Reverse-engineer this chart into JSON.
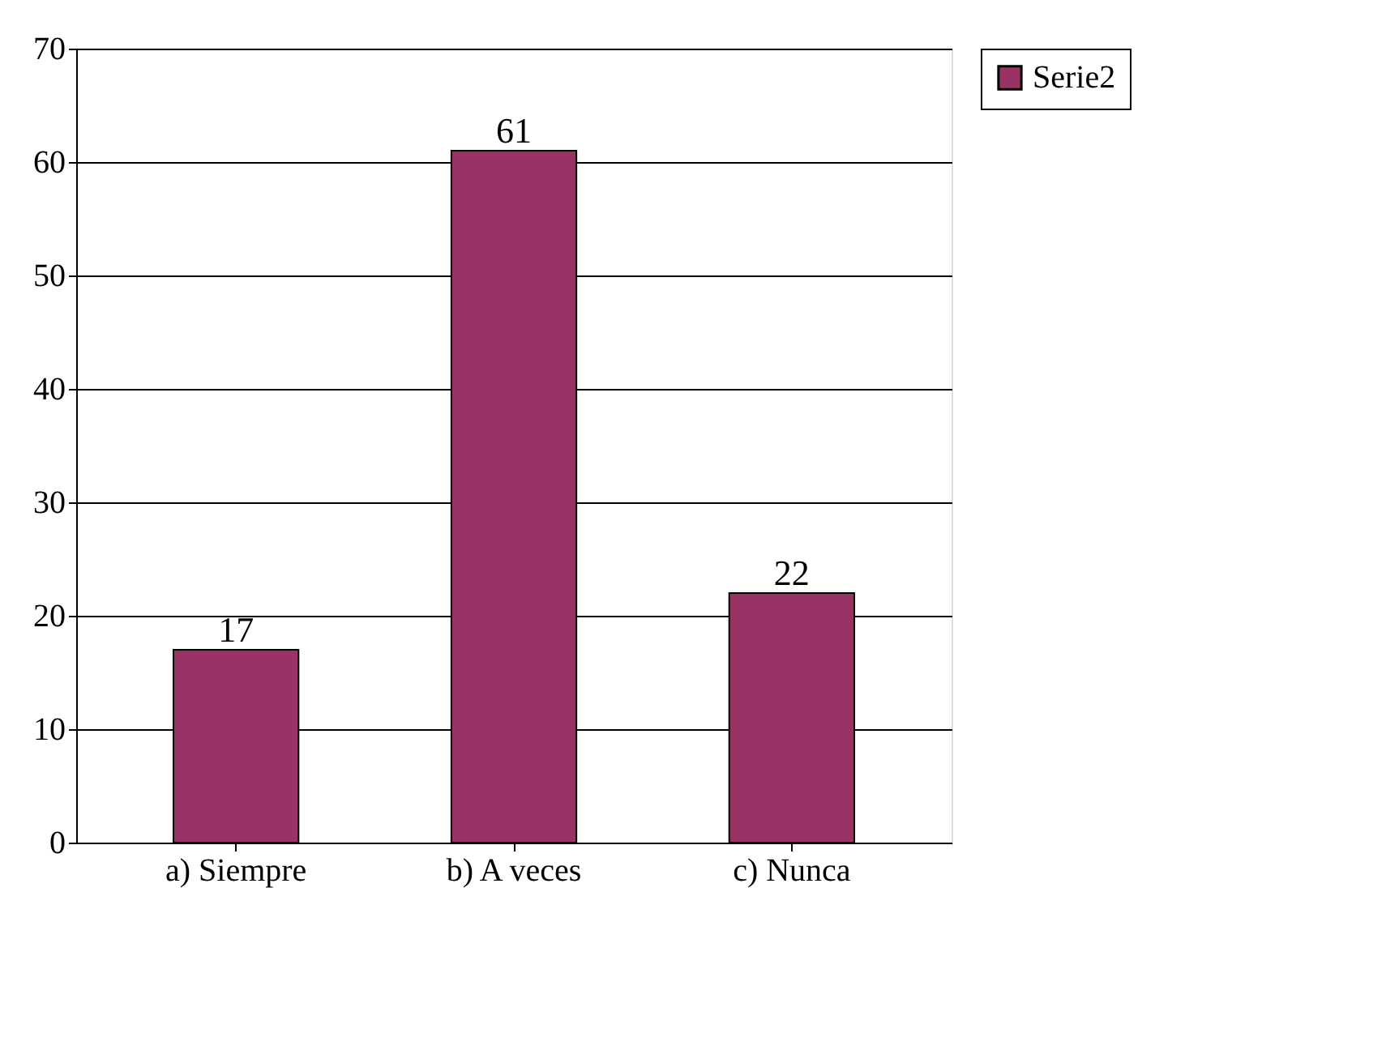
{
  "chart_data": {
    "type": "bar",
    "categories": [
      "a)  Siempre",
      "b)  A veces",
      "c)  Nunca"
    ],
    "series": [
      {
        "name": "Serie2",
        "color": "#993366",
        "values": [
          17,
          61,
          22
        ]
      }
    ],
    "ylim": [
      0,
      70
    ],
    "yticks": [
      0,
      10,
      20,
      30,
      40,
      50,
      60,
      70
    ],
    "grid": "y",
    "legend": "right",
    "data_labels": true
  }
}
